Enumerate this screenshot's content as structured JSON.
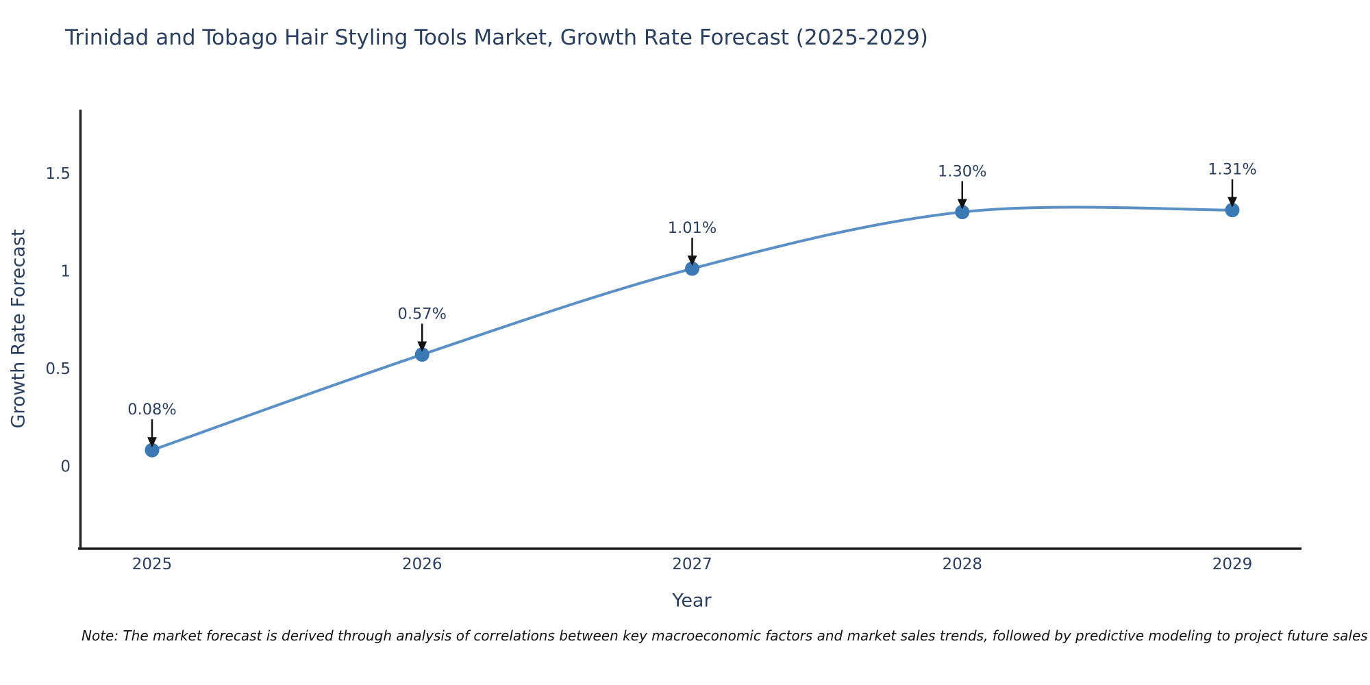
{
  "chart_data": {
    "type": "line",
    "title": "Trinidad and Tobago Hair Styling Tools Market, Growth Rate Forecast (2025-2029)",
    "xlabel": "Year",
    "ylabel": "Growth Rate Forecast",
    "x": [
      "2025",
      "2026",
      "2027",
      "2028",
      "2029"
    ],
    "values": [
      0.08,
      0.57,
      1.01,
      1.3,
      1.31
    ],
    "point_labels": [
      "0.08%",
      "0.57%",
      "1.01%",
      "1.30%",
      "1.31%"
    ],
    "y_ticks": [
      0,
      0.5,
      1,
      1.5
    ],
    "y_tick_labels": [
      "0",
      "0.5",
      "1",
      "1.5"
    ],
    "ylim": [
      -0.42,
      1.82
    ],
    "grid": false,
    "legend_position": "none",
    "line_shape": "spline",
    "line_color": "#5a90c6",
    "marker_color": "#3b79b5",
    "axis_color": "#1f1f1f",
    "text_color": "#2a3f5f",
    "arrow_color": "#111111"
  },
  "footnote": "Note: The market forecast is derived through analysis of correlations between key macroeconomic factors and market sales trends, followed by predictive modeling to project future sales"
}
